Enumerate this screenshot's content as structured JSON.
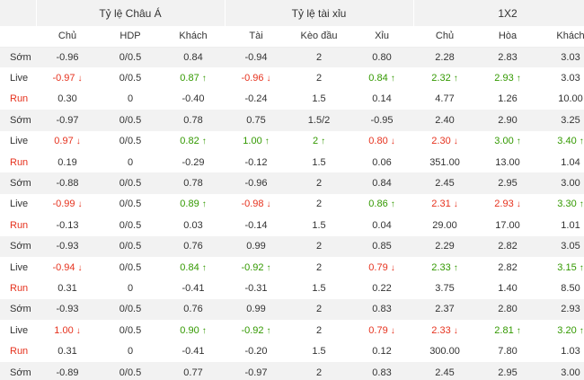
{
  "group_headers": [
    "Tỷ lệ Châu Á",
    "Tỷ lệ tài xỉu",
    "1X2"
  ],
  "column_headers": [
    "Chủ",
    "HDP",
    "Khách",
    "Tài",
    "Kèo đầu",
    "Xỉu",
    "Chủ",
    "Hòa",
    "Khách"
  ],
  "colors": {
    "down": "#e6321e",
    "up": "#339900",
    "run_label": "#e6321e",
    "band": "#f2f2f2"
  },
  "rows": [
    {
      "label": "Sớm",
      "type": "early",
      "cells": [
        {
          "v": "-0.96",
          "t": ""
        },
        {
          "v": "0/0.5",
          "t": ""
        },
        {
          "v": "0.84",
          "t": ""
        },
        {
          "v": "-0.94",
          "t": ""
        },
        {
          "v": "2",
          "t": ""
        },
        {
          "v": "0.80",
          "t": ""
        },
        {
          "v": "2.28",
          "t": ""
        },
        {
          "v": "2.83",
          "t": ""
        },
        {
          "v": "3.03",
          "t": ""
        }
      ]
    },
    {
      "label": "Live",
      "type": "live",
      "cells": [
        {
          "v": "-0.97",
          "t": "down"
        },
        {
          "v": "0/0.5",
          "t": ""
        },
        {
          "v": "0.87",
          "t": "up"
        },
        {
          "v": "-0.96",
          "t": "down"
        },
        {
          "v": "2",
          "t": ""
        },
        {
          "v": "0.84",
          "t": "up"
        },
        {
          "v": "2.32",
          "t": "up"
        },
        {
          "v": "2.93",
          "t": "up"
        },
        {
          "v": "3.03",
          "t": ""
        }
      ]
    },
    {
      "label": "Run",
      "type": "run",
      "cells": [
        {
          "v": "0.30",
          "t": ""
        },
        {
          "v": "0",
          "t": ""
        },
        {
          "v": "-0.40",
          "t": ""
        },
        {
          "v": "-0.24",
          "t": ""
        },
        {
          "v": "1.5",
          "t": ""
        },
        {
          "v": "0.14",
          "t": ""
        },
        {
          "v": "4.77",
          "t": ""
        },
        {
          "v": "1.26",
          "t": ""
        },
        {
          "v": "10.00",
          "t": ""
        }
      ]
    },
    {
      "label": "Sớm",
      "type": "early",
      "cells": [
        {
          "v": "-0.97",
          "t": ""
        },
        {
          "v": "0/0.5",
          "t": ""
        },
        {
          "v": "0.78",
          "t": ""
        },
        {
          "v": "0.75",
          "t": ""
        },
        {
          "v": "1.5/2",
          "t": ""
        },
        {
          "v": "-0.95",
          "t": ""
        },
        {
          "v": "2.40",
          "t": ""
        },
        {
          "v": "2.90",
          "t": ""
        },
        {
          "v": "3.25",
          "t": ""
        }
      ]
    },
    {
      "label": "Live",
      "type": "live",
      "cells": [
        {
          "v": "0.97",
          "t": "down"
        },
        {
          "v": "0/0.5",
          "t": ""
        },
        {
          "v": "0.82",
          "t": "up"
        },
        {
          "v": "1.00",
          "t": "up"
        },
        {
          "v": "2",
          "t": "up"
        },
        {
          "v": "0.80",
          "t": "down"
        },
        {
          "v": "2.30",
          "t": "down"
        },
        {
          "v": "3.00",
          "t": "up"
        },
        {
          "v": "3.40",
          "t": "up"
        }
      ]
    },
    {
      "label": "Run",
      "type": "run",
      "cells": [
        {
          "v": "0.19",
          "t": ""
        },
        {
          "v": "0",
          "t": ""
        },
        {
          "v": "-0.29",
          "t": ""
        },
        {
          "v": "-0.12",
          "t": ""
        },
        {
          "v": "1.5",
          "t": ""
        },
        {
          "v": "0.06",
          "t": ""
        },
        {
          "v": "351.00",
          "t": ""
        },
        {
          "v": "13.00",
          "t": ""
        },
        {
          "v": "1.04",
          "t": ""
        }
      ]
    },
    {
      "label": "Sớm",
      "type": "early",
      "cells": [
        {
          "v": "-0.88",
          "t": ""
        },
        {
          "v": "0/0.5",
          "t": ""
        },
        {
          "v": "0.78",
          "t": ""
        },
        {
          "v": "-0.96",
          "t": ""
        },
        {
          "v": "2",
          "t": ""
        },
        {
          "v": "0.84",
          "t": ""
        },
        {
          "v": "2.45",
          "t": ""
        },
        {
          "v": "2.95",
          "t": ""
        },
        {
          "v": "3.00",
          "t": ""
        }
      ]
    },
    {
      "label": "Live",
      "type": "live",
      "cells": [
        {
          "v": "-0.99",
          "t": "down"
        },
        {
          "v": "0/0.5",
          "t": ""
        },
        {
          "v": "0.89",
          "t": "up"
        },
        {
          "v": "-0.98",
          "t": "down"
        },
        {
          "v": "2",
          "t": ""
        },
        {
          "v": "0.86",
          "t": "up"
        },
        {
          "v": "2.31",
          "t": "down"
        },
        {
          "v": "2.93",
          "t": "down"
        },
        {
          "v": "3.30",
          "t": "up"
        }
      ]
    },
    {
      "label": "Run",
      "type": "run",
      "cells": [
        {
          "v": "-0.13",
          "t": ""
        },
        {
          "v": "0/0.5",
          "t": ""
        },
        {
          "v": "0.03",
          "t": ""
        },
        {
          "v": "-0.14",
          "t": ""
        },
        {
          "v": "1.5",
          "t": ""
        },
        {
          "v": "0.04",
          "t": ""
        },
        {
          "v": "29.00",
          "t": ""
        },
        {
          "v": "17.00",
          "t": ""
        },
        {
          "v": "1.01",
          "t": ""
        }
      ]
    },
    {
      "label": "Sớm",
      "type": "early",
      "cells": [
        {
          "v": "-0.93",
          "t": ""
        },
        {
          "v": "0/0.5",
          "t": ""
        },
        {
          "v": "0.76",
          "t": ""
        },
        {
          "v": "0.99",
          "t": ""
        },
        {
          "v": "2",
          "t": ""
        },
        {
          "v": "0.85",
          "t": ""
        },
        {
          "v": "2.29",
          "t": ""
        },
        {
          "v": "2.82",
          "t": ""
        },
        {
          "v": "3.05",
          "t": ""
        }
      ]
    },
    {
      "label": "Live",
      "type": "live",
      "cells": [
        {
          "v": "-0.94",
          "t": "down"
        },
        {
          "v": "0/0.5",
          "t": ""
        },
        {
          "v": "0.84",
          "t": "up"
        },
        {
          "v": "-0.92",
          "t": "up"
        },
        {
          "v": "2",
          "t": ""
        },
        {
          "v": "0.79",
          "t": "down"
        },
        {
          "v": "2.33",
          "t": "up"
        },
        {
          "v": "2.82",
          "t": ""
        },
        {
          "v": "3.15",
          "t": "up"
        }
      ]
    },
    {
      "label": "Run",
      "type": "run",
      "cells": [
        {
          "v": "0.31",
          "t": ""
        },
        {
          "v": "0",
          "t": ""
        },
        {
          "v": "-0.41",
          "t": ""
        },
        {
          "v": "-0.31",
          "t": ""
        },
        {
          "v": "1.5",
          "t": ""
        },
        {
          "v": "0.22",
          "t": ""
        },
        {
          "v": "3.75",
          "t": ""
        },
        {
          "v": "1.40",
          "t": ""
        },
        {
          "v": "8.50",
          "t": ""
        }
      ]
    },
    {
      "label": "Sớm",
      "type": "early",
      "cells": [
        {
          "v": "-0.93",
          "t": ""
        },
        {
          "v": "0/0.5",
          "t": ""
        },
        {
          "v": "0.76",
          "t": ""
        },
        {
          "v": "0.99",
          "t": ""
        },
        {
          "v": "2",
          "t": ""
        },
        {
          "v": "0.83",
          "t": ""
        },
        {
          "v": "2.37",
          "t": ""
        },
        {
          "v": "2.80",
          "t": ""
        },
        {
          "v": "2.93",
          "t": ""
        }
      ]
    },
    {
      "label": "Live",
      "type": "live",
      "cells": [
        {
          "v": "1.00",
          "t": "down"
        },
        {
          "v": "0/0.5",
          "t": ""
        },
        {
          "v": "0.90",
          "t": "up"
        },
        {
          "v": "-0.92",
          "t": "up"
        },
        {
          "v": "2",
          "t": ""
        },
        {
          "v": "0.79",
          "t": "down"
        },
        {
          "v": "2.33",
          "t": "down"
        },
        {
          "v": "2.81",
          "t": "up"
        },
        {
          "v": "3.20",
          "t": "up"
        }
      ]
    },
    {
      "label": "Run",
      "type": "run",
      "cells": [
        {
          "v": "0.31",
          "t": ""
        },
        {
          "v": "0",
          "t": ""
        },
        {
          "v": "-0.41",
          "t": ""
        },
        {
          "v": "-0.20",
          "t": ""
        },
        {
          "v": "1.5",
          "t": ""
        },
        {
          "v": "0.12",
          "t": ""
        },
        {
          "v": "300.00",
          "t": ""
        },
        {
          "v": "7.80",
          "t": ""
        },
        {
          "v": "1.03",
          "t": ""
        }
      ]
    },
    {
      "label": "Sớm",
      "type": "early",
      "cells": [
        {
          "v": "-0.89",
          "t": ""
        },
        {
          "v": "0/0.5",
          "t": ""
        },
        {
          "v": "0.77",
          "t": ""
        },
        {
          "v": "-0.97",
          "t": ""
        },
        {
          "v": "2",
          "t": ""
        },
        {
          "v": "0.83",
          "t": ""
        },
        {
          "v": "2.45",
          "t": ""
        },
        {
          "v": "2.95",
          "t": ""
        },
        {
          "v": "3.00",
          "t": ""
        }
      ]
    }
  ]
}
